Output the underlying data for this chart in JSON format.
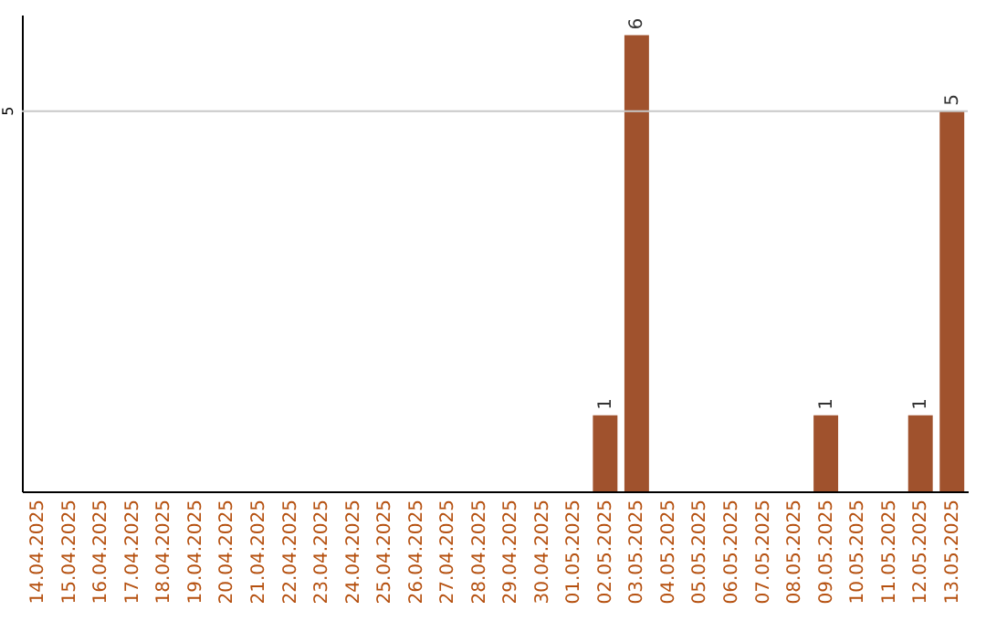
{
  "chart_data": {
    "type": "bar",
    "categories": [
      "14.04.2025",
      "15.04.2025",
      "16.04.2025",
      "17.04.2025",
      "18.04.2025",
      "19.04.2025",
      "20.04.2025",
      "21.04.2025",
      "22.04.2025",
      "23.04.2025",
      "24.04.2025",
      "25.04.2025",
      "26.04.2025",
      "27.04.2025",
      "28.04.2025",
      "29.04.2025",
      "30.04.2025",
      "01.05.2025",
      "02.05.2025",
      "03.05.2025",
      "04.05.2025",
      "05.05.2025",
      "06.05.2025",
      "07.05.2025",
      "08.05.2025",
      "09.05.2025",
      "10.05.2025",
      "11.05.2025",
      "12.05.2025",
      "13.05.2025"
    ],
    "values": [
      null,
      null,
      null,
      null,
      null,
      null,
      null,
      null,
      null,
      null,
      null,
      null,
      null,
      null,
      null,
      null,
      null,
      null,
      1,
      6,
      null,
      null,
      null,
      null,
      null,
      1,
      null,
      null,
      1,
      5
    ],
    "data_labels": true,
    "ref_lines": [
      {
        "axis": "y",
        "value": 5,
        "label": "5",
        "color": "#c8c8c8"
      }
    ],
    "color": "#a0522d",
    "ylim": [
      0,
      6.27
    ]
  }
}
